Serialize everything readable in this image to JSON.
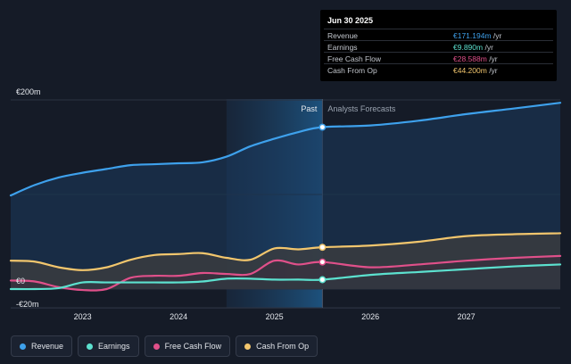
{
  "colors": {
    "revenue": "#3ea1ec",
    "earnings": "#5ce1cf",
    "fcf": "#e0508a",
    "cfo": "#f2c66d",
    "background": "#151b27"
  },
  "tooltip": {
    "date": "Jun 30 2025",
    "rows": [
      {
        "label": "Revenue",
        "value": "€171.194m",
        "unit": "/yr",
        "color": "#3ea1ec"
      },
      {
        "label": "Earnings",
        "value": "€9.890m",
        "unit": "/yr",
        "color": "#5ce1cf"
      },
      {
        "label": "Free Cash Flow",
        "value": "€28.588m",
        "unit": "/yr",
        "color": "#e0508a"
      },
      {
        "label": "Cash From Op",
        "value": "€44.200m",
        "unit": "/yr",
        "color": "#f2c66d"
      }
    ]
  },
  "legend": [
    {
      "label": "Revenue",
      "color": "#3ea1ec"
    },
    {
      "label": "Earnings",
      "color": "#5ce1cf"
    },
    {
      "label": "Free Cash Flow",
      "color": "#e0508a"
    },
    {
      "label": "Cash From Op",
      "color": "#f2c66d"
    }
  ],
  "chart_data": {
    "type": "line",
    "title": "",
    "xlabel": "",
    "ylabel": "",
    "unit": "€m",
    "xlim": [
      2022.25,
      2027.98
    ],
    "ylim": [
      -20,
      200
    ],
    "y_tick_labels": [
      {
        "value": 200,
        "label": "€200m"
      },
      {
        "value": 0,
        "label": "€0"
      },
      {
        "value": -20,
        "label": "-€20m"
      }
    ],
    "x_tick_labels": [
      {
        "value": 2023,
        "label": "2023"
      },
      {
        "value": 2024,
        "label": "2024"
      },
      {
        "value": 2025,
        "label": "2025"
      },
      {
        "value": 2026,
        "label": "2026"
      },
      {
        "value": 2027,
        "label": "2027"
      }
    ],
    "past_start": 2024.5,
    "divider_x": 2025.5,
    "past_label": "Past",
    "forecast_label": "Analysts Forecasts",
    "series": [
      {
        "name": "Revenue",
        "key": "revenue",
        "points": [
          [
            2022.25,
            99
          ],
          [
            2022.5,
            110
          ],
          [
            2022.75,
            118
          ],
          [
            2023.0,
            123
          ],
          [
            2023.25,
            127
          ],
          [
            2023.5,
            131
          ],
          [
            2023.75,
            132
          ],
          [
            2024.0,
            133
          ],
          [
            2024.25,
            134
          ],
          [
            2024.5,
            140
          ],
          [
            2024.75,
            151
          ],
          [
            2025.0,
            159
          ],
          [
            2025.25,
            166
          ],
          [
            2025.5,
            171.2
          ],
          [
            2026.0,
            173
          ],
          [
            2026.5,
            178
          ],
          [
            2027.0,
            185
          ],
          [
            2027.5,
            191
          ],
          [
            2027.98,
            197
          ]
        ]
      },
      {
        "name": "Earnings",
        "key": "earnings",
        "points": [
          [
            2022.25,
            0
          ],
          [
            2022.5,
            0
          ],
          [
            2022.75,
            1
          ],
          [
            2023.0,
            7
          ],
          [
            2023.25,
            7
          ],
          [
            2023.5,
            7
          ],
          [
            2023.75,
            7
          ],
          [
            2024.0,
            7
          ],
          [
            2024.25,
            8
          ],
          [
            2024.5,
            11
          ],
          [
            2024.75,
            11
          ],
          [
            2025.0,
            10
          ],
          [
            2025.25,
            10
          ],
          [
            2025.5,
            9.9
          ],
          [
            2026.0,
            15
          ],
          [
            2026.5,
            18
          ],
          [
            2027.0,
            21
          ],
          [
            2027.5,
            24
          ],
          [
            2027.98,
            26
          ]
        ]
      },
      {
        "name": "Free Cash Flow",
        "key": "fcf",
        "points": [
          [
            2022.25,
            9
          ],
          [
            2022.5,
            8
          ],
          [
            2022.75,
            2
          ],
          [
            2023.0,
            -1
          ],
          [
            2023.25,
            0
          ],
          [
            2023.5,
            12
          ],
          [
            2023.75,
            14
          ],
          [
            2024.0,
            14
          ],
          [
            2024.25,
            17
          ],
          [
            2024.5,
            16
          ],
          [
            2024.75,
            16
          ],
          [
            2025.0,
            30
          ],
          [
            2025.25,
            26
          ],
          [
            2025.5,
            28.6
          ],
          [
            2026.0,
            23
          ],
          [
            2026.5,
            26
          ],
          [
            2027.0,
            30
          ],
          [
            2027.5,
            33
          ],
          [
            2027.98,
            35
          ]
        ]
      },
      {
        "name": "Cash From Op",
        "key": "cfo",
        "points": [
          [
            2022.25,
            30
          ],
          [
            2022.5,
            29
          ],
          [
            2022.75,
            23
          ],
          [
            2023.0,
            20
          ],
          [
            2023.25,
            23
          ],
          [
            2023.5,
            31
          ],
          [
            2023.75,
            36
          ],
          [
            2024.0,
            37
          ],
          [
            2024.25,
            38
          ],
          [
            2024.5,
            33
          ],
          [
            2024.75,
            31
          ],
          [
            2025.0,
            43
          ],
          [
            2025.25,
            42
          ],
          [
            2025.5,
            44.2
          ],
          [
            2026.0,
            46
          ],
          [
            2026.5,
            50
          ],
          [
            2027.0,
            56
          ],
          [
            2027.5,
            58
          ],
          [
            2027.98,
            59
          ]
        ]
      }
    ]
  }
}
